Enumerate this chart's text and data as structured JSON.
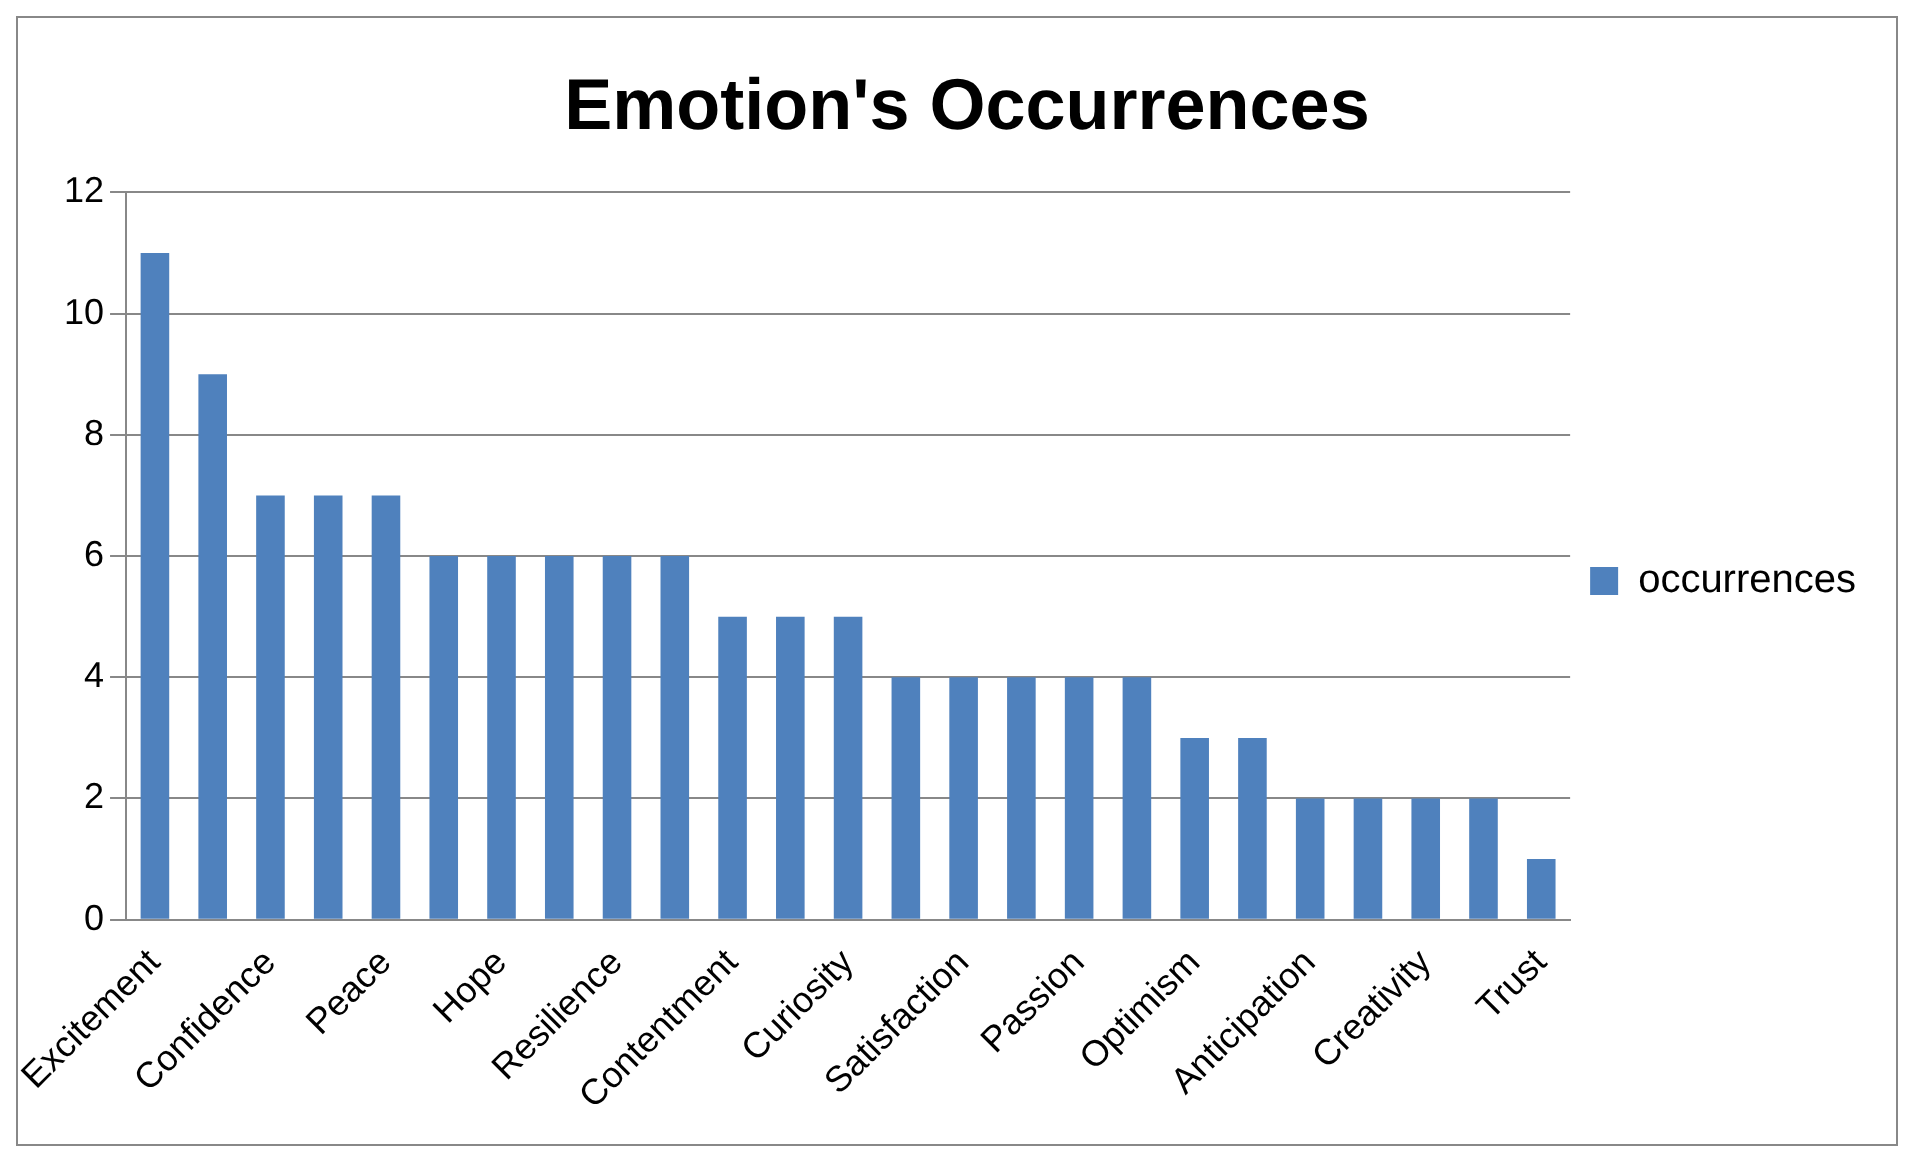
{
  "chart_data": {
    "type": "bar",
    "title": "Emotion's Occurrences",
    "categories": [
      "Excitement",
      null,
      "Confidence",
      null,
      "Peace",
      null,
      "Hope",
      null,
      "Resilience",
      null,
      "Contentment",
      null,
      "Curiosity",
      null,
      "Satisfaction",
      null,
      "Passion",
      null,
      "Optimism",
      null,
      "Anticipation",
      null,
      "Creativity",
      null,
      "Trust"
    ],
    "series": [
      {
        "name": "occurrences",
        "color": "#4f81bd",
        "values": [
          11,
          9,
          7,
          7,
          7,
          6,
          6,
          6,
          6,
          6,
          5,
          5,
          5,
          4,
          4,
          4,
          4,
          4,
          3,
          3,
          2,
          2,
          2,
          2,
          1
        ]
      }
    ],
    "ylim": [
      0,
      12
    ],
    "yticks": [
      0,
      2,
      4,
      6,
      8,
      10,
      12
    ],
    "grid": "y",
    "legend": "right"
  }
}
